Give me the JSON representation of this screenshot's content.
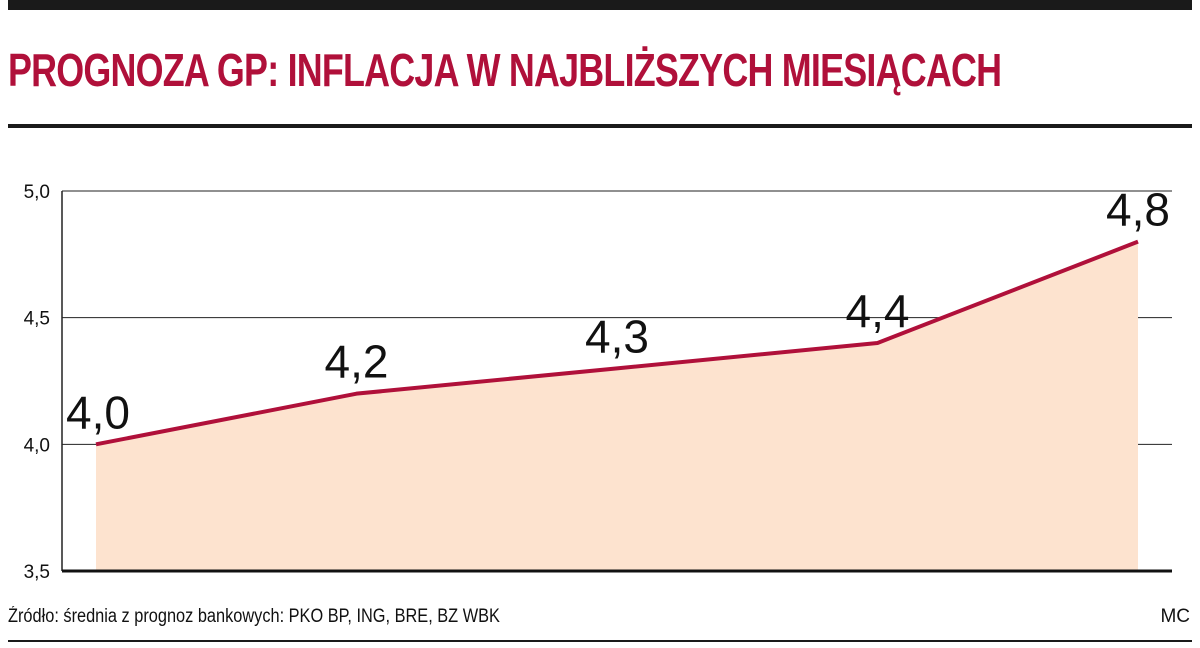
{
  "header": {
    "title": "PROGNOZA GP: INFLACJA W NAJBLIŻSZYCH MIESIĄCACH"
  },
  "footer": {
    "source": "Źródło: średnia z prognoz bankowych: PKO BP, ING, BRE, BZ WBK",
    "credit": "MC"
  },
  "colors": {
    "title": "#b0103a",
    "line": "#b0103a",
    "area_fill": "#fde3cf",
    "grid": "#222222"
  },
  "chart_data": {
    "type": "area",
    "title": "PROGNOZA GP: INFLACJA W NAJBLIŻSZYCH MIESIĄCACH",
    "xlabel": "",
    "ylabel": "",
    "x": [
      1,
      2,
      3,
      4,
      5
    ],
    "values": [
      4.0,
      4.2,
      4.3,
      4.4,
      4.8
    ],
    "data_labels": [
      "4,0",
      "4,2",
      "4,3",
      "4,4",
      "4,8"
    ],
    "ylim": [
      3.5,
      5.0
    ],
    "yticks": [
      3.5,
      4.0,
      4.5,
      5.0
    ],
    "ytick_labels": [
      "3,5",
      "4,0",
      "4,5",
      "5,0"
    ],
    "grid": true,
    "legend": "none"
  }
}
